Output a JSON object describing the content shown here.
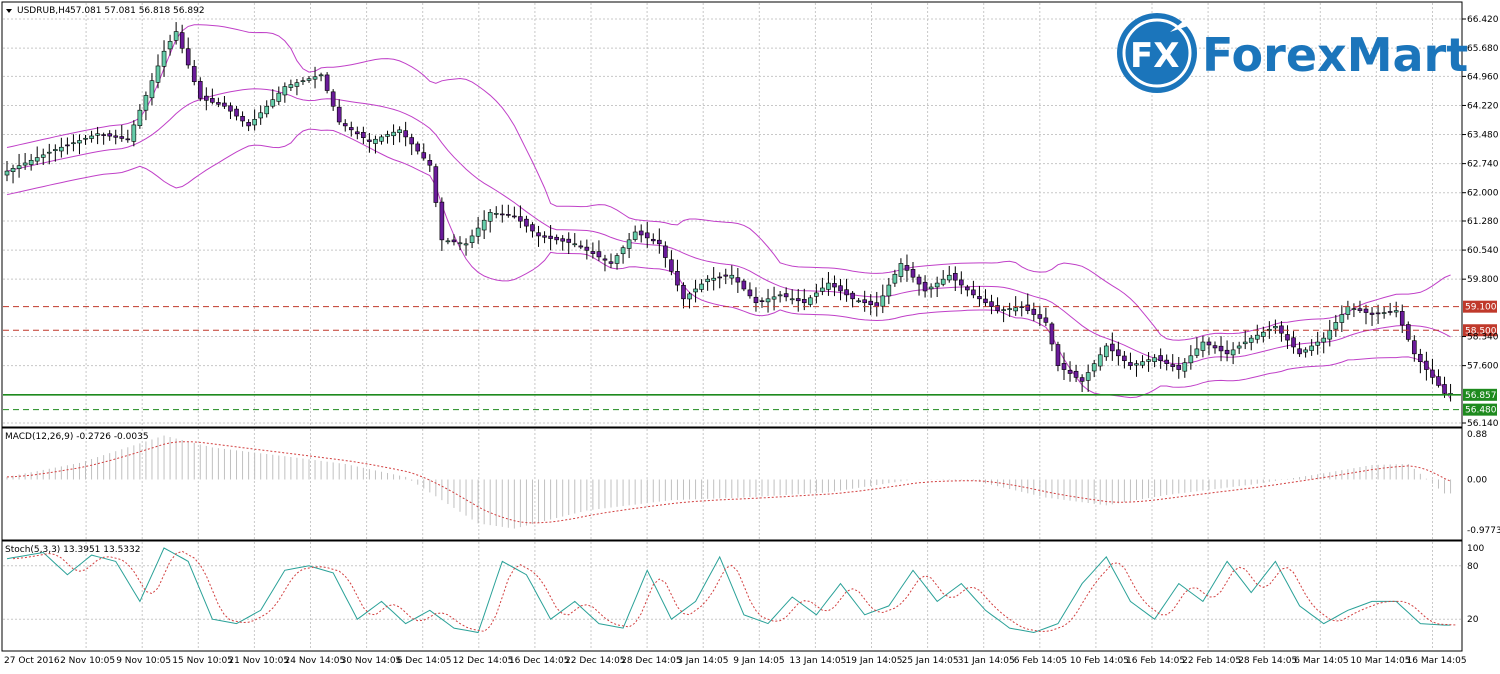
{
  "header": {
    "symbol_label": "USDRUB,H4",
    "ohlc_text": "57.081 57.081 56.818 56.892"
  },
  "logo": {
    "mark_text": "FX",
    "brand_text": "ForexMart"
  },
  "colors": {
    "background": "#ffffff",
    "grid": "#c8c8c8",
    "bull": "#66cdaa",
    "bear": "#6a1b9a",
    "bollinger": "#c040c8",
    "resistance": "#c0392b",
    "support": "#1e8a1e",
    "macd_hist": "#c0c0c0",
    "signal": "#d24040",
    "stoch_main": "#2aa198",
    "stoch_signal": "#d24040",
    "brand": "#1b75bb"
  },
  "chart_data": [
    {
      "type": "candlestick",
      "name": "USDRUB,H4",
      "ylim": [
        56.14,
        66.42
      ],
      "price_ticks": [
        "66.420",
        "65.680",
        "64.960",
        "64.220",
        "63.480",
        "62.740",
        "62.000",
        "61.280",
        "60.540",
        "59.800",
        "58.340",
        "57.600",
        "56.140"
      ],
      "x_ticks": [
        "27 Oct 2016",
        "2 Nov 10:05",
        "9 Nov 10:05",
        "15 Nov 10:05",
        "21 Nov 10:05",
        "24 Nov 14:05",
        "30 Nov 14:05",
        "6 Dec 14:05",
        "12 Dec 14:05",
        "16 Dec 14:05",
        "22 Dec 14:05",
        "28 Dec 14:05",
        "3 Jan 14:05",
        "9 Jan 14:05",
        "13 Jan 14:05",
        "19 Jan 14:05",
        "25 Jan 14:05",
        "31 Jan 14:05",
        "6 Feb 14:05",
        "10 Feb 14:05",
        "16 Feb 14:05",
        "22 Feb 14:05",
        "28 Feb 14:05",
        "6 Mar 14:05",
        "10 Mar 14:05",
        "16 Mar 14:05"
      ],
      "anchors": [
        [
          0,
          62.55
        ],
        [
          8,
          63.1
        ],
        [
          15,
          63.5
        ],
        [
          20,
          63.35
        ],
        [
          26,
          65.6
        ],
        [
          28,
          66.1
        ],
        [
          32,
          64.4
        ],
        [
          36,
          64.2
        ],
        [
          40,
          63.7
        ],
        [
          46,
          64.7
        ],
        [
          52,
          65.0
        ],
        [
          55,
          63.8
        ],
        [
          60,
          63.3
        ],
        [
          65,
          63.6
        ],
        [
          70,
          62.7
        ],
        [
          72,
          60.8
        ],
        [
          76,
          60.7
        ],
        [
          80,
          61.5
        ],
        [
          84,
          61.4
        ],
        [
          88,
          60.9
        ],
        [
          94,
          60.7
        ],
        [
          100,
          60.2
        ],
        [
          104,
          61.0
        ],
        [
          108,
          60.7
        ],
        [
          112,
          59.3
        ],
        [
          116,
          59.8
        ],
        [
          120,
          59.9
        ],
        [
          124,
          59.2
        ],
        [
          128,
          59.4
        ],
        [
          132,
          59.2
        ],
        [
          136,
          59.7
        ],
        [
          140,
          59.3
        ],
        [
          144,
          59.1
        ],
        [
          148,
          60.2
        ],
        [
          152,
          59.5
        ],
        [
          156,
          59.9
        ],
        [
          160,
          59.4
        ],
        [
          164,
          59.0
        ],
        [
          168,
          59.1
        ],
        [
          172,
          58.7
        ],
        [
          174,
          57.6
        ],
        [
          178,
          57.2
        ],
        [
          182,
          58.1
        ],
        [
          186,
          57.6
        ],
        [
          190,
          57.8
        ],
        [
          194,
          57.5
        ],
        [
          198,
          58.2
        ],
        [
          202,
          57.9
        ],
        [
          206,
          58.3
        ],
        [
          210,
          58.6
        ],
        [
          214,
          57.9
        ],
        [
          218,
          58.3
        ],
        [
          222,
          59.1
        ],
        [
          226,
          58.9
        ],
        [
          230,
          59.0
        ],
        [
          233,
          57.9
        ],
        [
          236,
          57.3
        ],
        [
          238,
          56.892
        ]
      ],
      "support_levels": [
        {
          "label": "56.857",
          "value": 56.857,
          "style": "solid"
        },
        {
          "label": "56.480",
          "value": 56.48,
          "style": "dashed"
        }
      ],
      "resistance_levels": [
        {
          "label": "59.100",
          "value": 59.1,
          "style": "dashed"
        },
        {
          "label": "58.500",
          "value": 58.5,
          "style": "dashed"
        }
      ],
      "bollinger": true,
      "grid": true
    },
    {
      "type": "histogram",
      "name": "MACD(12,26,9)",
      "label_text": "MACD(12,26,9) -0.2726 -0.0035",
      "ylim": [
        -0.9773,
        0.88
      ],
      "ticks": [
        "0.88",
        "0.00",
        "-0.9773"
      ],
      "anchors": [
        [
          0,
          0.05
        ],
        [
          12,
          0.32
        ],
        [
          26,
          0.85
        ],
        [
          34,
          0.62
        ],
        [
          46,
          0.45
        ],
        [
          56,
          0.3
        ],
        [
          66,
          0.05
        ],
        [
          78,
          -0.85
        ],
        [
          84,
          -0.95
        ],
        [
          96,
          -0.6
        ],
        [
          110,
          -0.4
        ],
        [
          122,
          -0.35
        ],
        [
          136,
          -0.25
        ],
        [
          150,
          0.0
        ],
        [
          160,
          -0.02
        ],
        [
          172,
          -0.35
        ],
        [
          182,
          -0.5
        ],
        [
          192,
          -0.3
        ],
        [
          206,
          -0.1
        ],
        [
          218,
          0.12
        ],
        [
          226,
          0.28
        ],
        [
          232,
          0.3
        ],
        [
          238,
          -0.27
        ]
      ]
    },
    {
      "type": "line",
      "name": "Stoch(5,3,3)",
      "label_text": "Stoch(5,3,3) 13.3951 13.5332",
      "ylim": [
        0,
        100
      ],
      "ticks": [
        "100",
        "80",
        "20"
      ],
      "anchors": [
        [
          0,
          88
        ],
        [
          6,
          95
        ],
        [
          10,
          70
        ],
        [
          14,
          92
        ],
        [
          18,
          85
        ],
        [
          22,
          40
        ],
        [
          26,
          100
        ],
        [
          30,
          85
        ],
        [
          34,
          20
        ],
        [
          38,
          15
        ],
        [
          42,
          30
        ],
        [
          46,
          75
        ],
        [
          50,
          80
        ],
        [
          54,
          72
        ],
        [
          58,
          20
        ],
        [
          62,
          40
        ],
        [
          66,
          15
        ],
        [
          70,
          30
        ],
        [
          74,
          10
        ],
        [
          78,
          5
        ],
        [
          82,
          85
        ],
        [
          86,
          70
        ],
        [
          90,
          20
        ],
        [
          94,
          40
        ],
        [
          98,
          15
        ],
        [
          102,
          10
        ],
        [
          106,
          75
        ],
        [
          110,
          20
        ],
        [
          114,
          40
        ],
        [
          118,
          90
        ],
        [
          122,
          25
        ],
        [
          126,
          15
        ],
        [
          130,
          45
        ],
        [
          134,
          25
        ],
        [
          138,
          60
        ],
        [
          142,
          25
        ],
        [
          146,
          35
        ],
        [
          150,
          75
        ],
        [
          154,
          40
        ],
        [
          158,
          60
        ],
        [
          162,
          30
        ],
        [
          166,
          10
        ],
        [
          170,
          5
        ],
        [
          174,
          15
        ],
        [
          178,
          60
        ],
        [
          182,
          90
        ],
        [
          186,
          40
        ],
        [
          190,
          20
        ],
        [
          194,
          60
        ],
        [
          198,
          40
        ],
        [
          202,
          85
        ],
        [
          206,
          50
        ],
        [
          210,
          85
        ],
        [
          214,
          35
        ],
        [
          218,
          15
        ],
        [
          222,
          30
        ],
        [
          226,
          40
        ],
        [
          230,
          40
        ],
        [
          234,
          15
        ],
        [
          238,
          13.4
        ]
      ]
    }
  ]
}
